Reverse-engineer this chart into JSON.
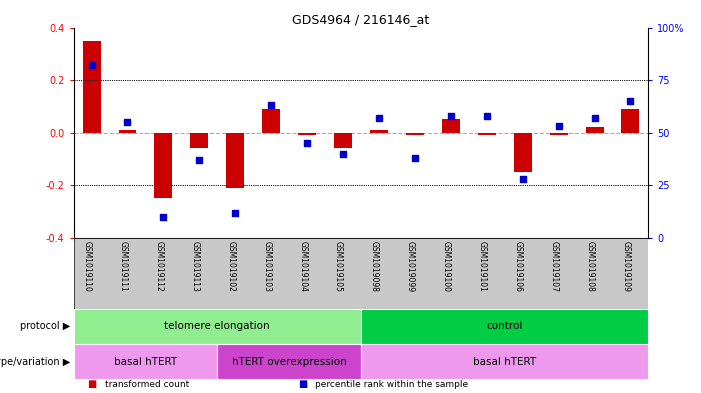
{
  "title": "GDS4964 / 216146_at",
  "samples": [
    "GSM1019110",
    "GSM1019111",
    "GSM1019112",
    "GSM1019113",
    "GSM1019102",
    "GSM1019103",
    "GSM1019104",
    "GSM1019105",
    "GSM1019098",
    "GSM1019099",
    "GSM1019100",
    "GSM1019101",
    "GSM1019106",
    "GSM1019107",
    "GSM1019108",
    "GSM1019109"
  ],
  "red_values": [
    0.35,
    0.01,
    -0.25,
    -0.06,
    -0.21,
    0.09,
    -0.01,
    -0.06,
    0.01,
    -0.01,
    0.05,
    -0.01,
    -0.15,
    -0.01,
    0.02,
    0.09
  ],
  "blue_values_pct": [
    82,
    55,
    10,
    37,
    12,
    63,
    45,
    40,
    57,
    38,
    58,
    58,
    28,
    53,
    57,
    65
  ],
  "ylim_left": [
    -0.4,
    0.4
  ],
  "ylim_right": [
    0,
    100
  ],
  "yticks_left": [
    -0.4,
    -0.2,
    0.0,
    0.2,
    0.4
  ],
  "yticks_right": [
    0,
    25,
    50,
    75,
    100
  ],
  "protocol_groups": [
    {
      "label": "telomere elongation",
      "start": 0,
      "end": 8,
      "color": "#90EE90"
    },
    {
      "label": "control",
      "start": 8,
      "end": 16,
      "color": "#00CC44"
    }
  ],
  "genotype_groups": [
    {
      "label": "basal hTERT",
      "start": 0,
      "end": 4,
      "color": "#EE99EE"
    },
    {
      "label": "hTERT overexpression",
      "start": 4,
      "end": 8,
      "color": "#CC44CC"
    },
    {
      "label": "basal hTERT",
      "start": 8,
      "end": 16,
      "color": "#EE99EE"
    }
  ],
  "legend_items": [
    {
      "color": "#CC0000",
      "label": "transformed count"
    },
    {
      "color": "#0000CC",
      "label": "percentile rank within the sample"
    }
  ],
  "bar_color": "#CC0000",
  "dot_color": "#0000CC",
  "zero_line_color": "#FF8888",
  "grid_color": "#000000",
  "bg_color": "#ffffff",
  "tick_area_color": "#C8C8C8"
}
